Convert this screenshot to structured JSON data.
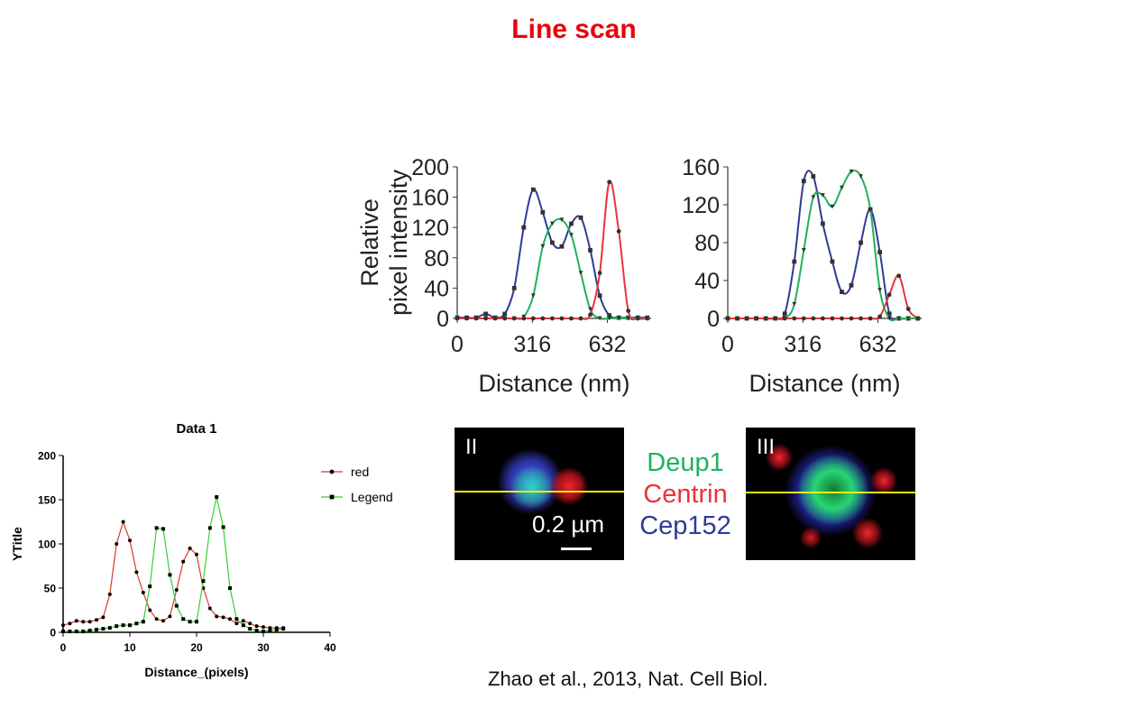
{
  "slide": {
    "title": "Line scan",
    "citation": "Zhao et al., 2013, Nat. Cell Biol."
  },
  "colors": {
    "title_red": "#e8000b",
    "red": "#e8343a",
    "green": "#1db35a",
    "blue": "#2e3b96",
    "yellow_line": "#ffef00",
    "small_red": "#d93a2b",
    "small_green": "#35d12e"
  },
  "legend_labels": {
    "green": "Deup1",
    "red": "Centrin",
    "blue": "Cep152"
  },
  "panels": [
    {
      "label": "II",
      "scale_text": "0.2 µm"
    },
    {
      "label": "III"
    }
  ],
  "chart_data": [
    {
      "type": "line",
      "ylabel": [
        "Relative",
        "pixel intensity"
      ],
      "xlabel": "Distance (nm)",
      "xticks": [
        0,
        316,
        632
      ],
      "yticks": [
        0,
        40,
        80,
        120,
        160,
        200
      ],
      "xlim": [
        0,
        816
      ],
      "ylim": [
        0,
        200
      ],
      "series": [
        {
          "color": "blue",
          "marker": "square",
          "x": [
            0,
            40,
            80,
            120,
            160,
            200,
            240,
            280,
            320,
            360,
            400,
            440,
            480,
            520,
            560,
            600,
            640,
            680,
            720,
            760,
            800
          ],
          "y": [
            1,
            1,
            1,
            6,
            1,
            6,
            40,
            120,
            170,
            140,
            100,
            95,
            125,
            133,
            90,
            30,
            4,
            1,
            1,
            1,
            1
          ]
        },
        {
          "color": "green",
          "marker": "triangle",
          "x": [
            0,
            40,
            80,
            120,
            160,
            200,
            240,
            280,
            320,
            360,
            400,
            440,
            480,
            520,
            560,
            600,
            640,
            680,
            720,
            760,
            800
          ],
          "y": [
            0,
            0,
            0,
            0,
            0,
            0,
            0,
            2,
            30,
            95,
            125,
            130,
            110,
            60,
            12,
            0,
            0,
            0,
            0,
            0,
            0
          ]
        },
        {
          "color": "red",
          "marker": "circle",
          "x": [
            0,
            40,
            80,
            120,
            160,
            200,
            240,
            280,
            320,
            360,
            400,
            440,
            480,
            520,
            560,
            600,
            640,
            680,
            720,
            760,
            800
          ],
          "y": [
            0,
            0,
            0,
            0,
            0,
            0,
            0,
            0,
            0,
            0,
            0,
            0,
            0,
            0,
            5,
            60,
            180,
            115,
            10,
            0,
            0
          ]
        }
      ]
    },
    {
      "type": "line",
      "ylabel": [],
      "xlabel": "Distance (nm)",
      "xticks": [
        0,
        316,
        632
      ],
      "yticks": [
        0,
        40,
        80,
        120,
        160
      ],
      "xlim": [
        0,
        816
      ],
      "ylim": [
        0,
        160
      ],
      "series": [
        {
          "color": "blue",
          "marker": "square",
          "x": [
            0,
            40,
            80,
            120,
            160,
            200,
            240,
            280,
            320,
            360,
            400,
            440,
            480,
            520,
            560,
            600,
            640,
            680,
            720,
            760,
            800
          ],
          "y": [
            0,
            0,
            0,
            0,
            0,
            0,
            5,
            60,
            145,
            150,
            100,
            60,
            28,
            35,
            80,
            115,
            70,
            5,
            0,
            0,
            0
          ]
        },
        {
          "color": "green",
          "marker": "triangle",
          "x": [
            0,
            40,
            80,
            120,
            160,
            200,
            240,
            280,
            320,
            360,
            400,
            440,
            480,
            520,
            560,
            600,
            640,
            680,
            720,
            760,
            800
          ],
          "y": [
            0,
            0,
            0,
            0,
            0,
            0,
            0,
            15,
            72,
            128,
            130,
            118,
            138,
            155,
            150,
            115,
            30,
            0,
            0,
            0,
            0
          ]
        },
        {
          "color": "red",
          "marker": "circle",
          "x": [
            0,
            40,
            80,
            120,
            160,
            200,
            240,
            280,
            320,
            360,
            400,
            440,
            480,
            520,
            560,
            600,
            640,
            680,
            720,
            760,
            800
          ],
          "y": [
            0,
            0,
            0,
            0,
            0,
            0,
            0,
            0,
            0,
            0,
            0,
            0,
            0,
            0,
            0,
            0,
            2,
            25,
            45,
            10,
            0
          ]
        }
      ]
    },
    {
      "type": "line",
      "title": "Data 1",
      "xlabel": "Distance_(pixels)",
      "ylabel": "YTitle",
      "xticks": [
        0,
        10,
        20,
        30,
        40
      ],
      "yticks": [
        0,
        50,
        100,
        150,
        200
      ],
      "xlim": [
        0,
        40
      ],
      "ylim": [
        0,
        200
      ],
      "legend": "top-right",
      "series": [
        {
          "name": "red",
          "color": "small_red",
          "marker": "circle",
          "x": [
            0,
            1,
            2,
            3,
            4,
            5,
            6,
            7,
            8,
            9,
            10,
            11,
            12,
            13,
            14,
            15,
            16,
            17,
            18,
            19,
            20,
            21,
            22,
            23,
            24,
            25,
            26,
            27,
            28,
            29,
            30,
            31,
            32,
            33
          ],
          "y": [
            8,
            10,
            13,
            12,
            12,
            14,
            17,
            43,
            100,
            125,
            104,
            68,
            45,
            25,
            15,
            13,
            18,
            48,
            80,
            95,
            88,
            50,
            27,
            18,
            17,
            15,
            10,
            13,
            10,
            7,
            6,
            5,
            5,
            5
          ]
        },
        {
          "name": "Legend",
          "color": "small_green",
          "marker": "square",
          "x": [
            0,
            1,
            2,
            3,
            4,
            5,
            6,
            7,
            8,
            9,
            10,
            11,
            12,
            13,
            14,
            15,
            16,
            17,
            18,
            19,
            20,
            21,
            22,
            23,
            24,
            25,
            26,
            27,
            28,
            29,
            30,
            31,
            32,
            33
          ],
          "y": [
            1,
            1,
            1,
            1,
            2,
            3,
            4,
            5,
            7,
            8,
            8,
            10,
            12,
            52,
            118,
            117,
            65,
            30,
            15,
            12,
            12,
            58,
            118,
            153,
            119,
            50,
            15,
            8,
            4,
            2,
            1,
            2,
            3,
            4
          ]
        }
      ]
    }
  ]
}
